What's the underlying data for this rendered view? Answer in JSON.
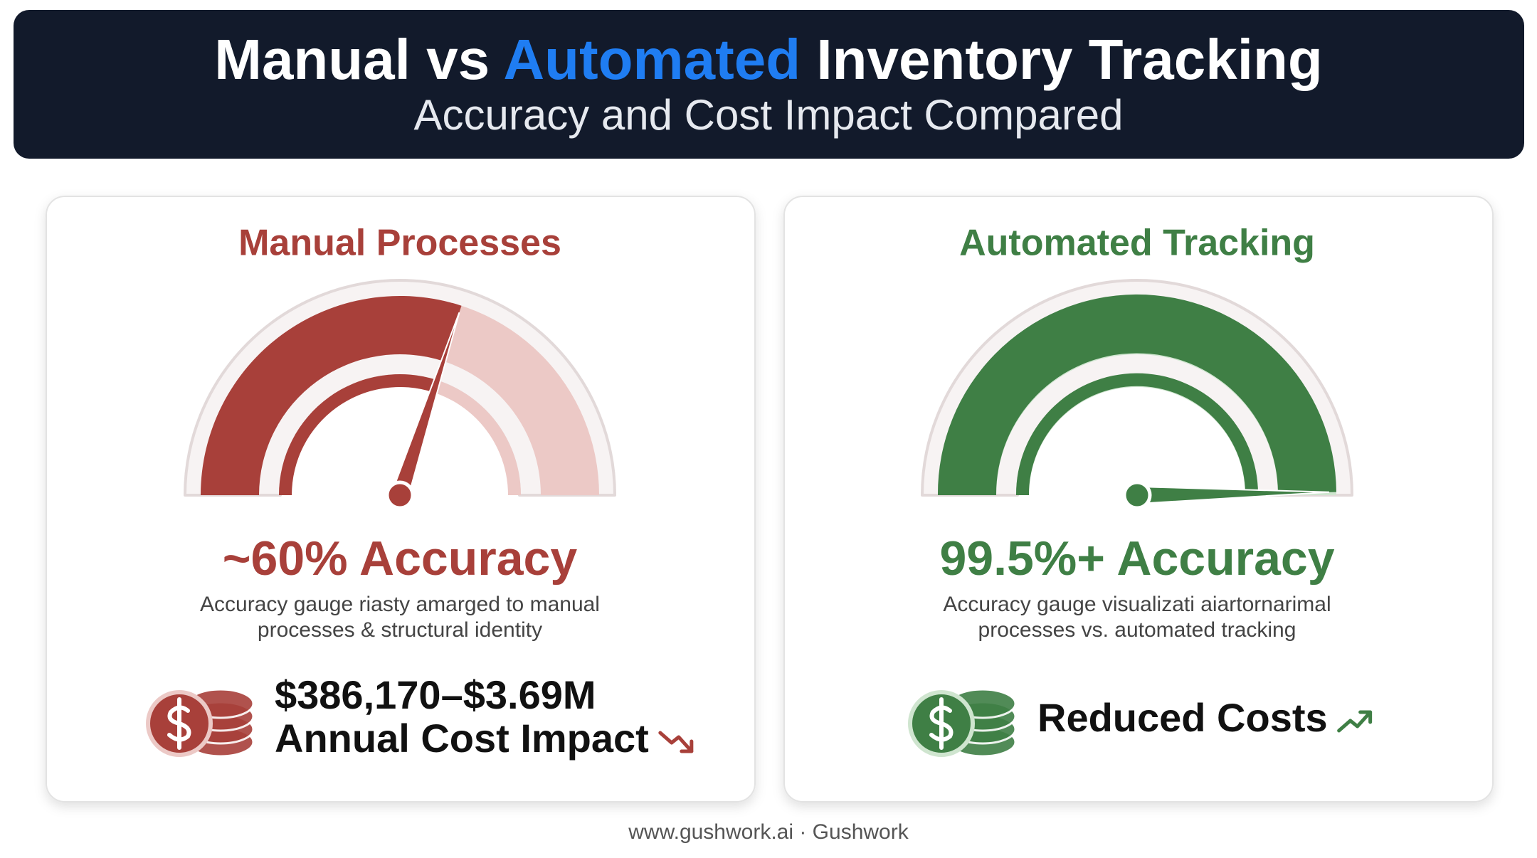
{
  "header": {
    "title_parts": [
      "Manual vs ",
      "Automated",
      " Inventory Tracking"
    ],
    "subtitle": "Accuracy and Cost Impact Compared"
  },
  "panels": [
    {
      "title": "Manual Processes",
      "color": "#a8403a",
      "light": "#ecc9c6",
      "gauge": {
        "value": 60,
        "range": [
          0,
          100
        ]
      },
      "accuracy_label": "~60% Accuracy",
      "description": [
        "Accuracy gauge riasty amarged to manual",
        "processes & structural identity"
      ],
      "cost_lines": [
        "$386,170–$3.69M",
        "Annual Cost Impact"
      ],
      "trend": "down"
    },
    {
      "title": "Automated Tracking",
      "color": "#3f7f45",
      "light": "#cfe5cf",
      "gauge": {
        "value": 99.5,
        "range": [
          0,
          100
        ]
      },
      "accuracy_label": "99.5%+ Accuracy",
      "description": [
        "Accuracy gauge visualizati aiartornarimal",
        "processes vs. automated tracking"
      ],
      "cost_lines": [
        "Reduced Costs"
      ],
      "trend": "up"
    }
  ],
  "footer": "www.gushwork.ai · Gushwork"
}
